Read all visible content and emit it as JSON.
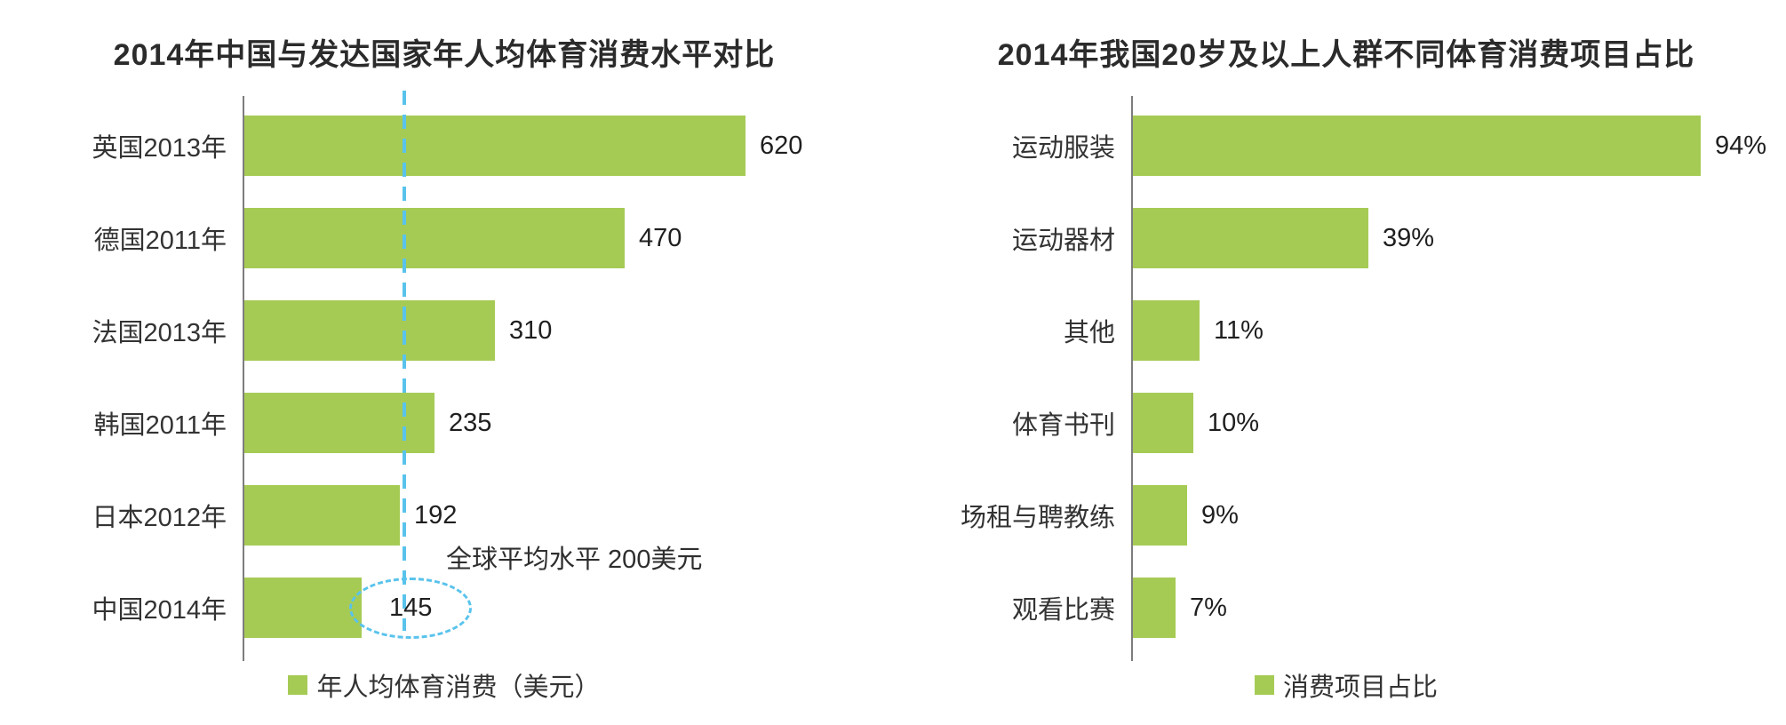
{
  "colors": {
    "bar": "#a6cb55",
    "accent": "#59c3ec",
    "axis": "#7d7d7d",
    "text": "#333333"
  },
  "chart_data": [
    {
      "type": "bar",
      "orientation": "horizontal",
      "title": "2014年中国与发达国家年人均体育消费水平对比",
      "categories": [
        "英国2013年",
        "德国2011年",
        "法国2013年",
        "韩国2011年",
        "日本2012年",
        "中国2014年"
      ],
      "values": [
        620,
        470,
        310,
        235,
        192,
        145
      ],
      "value_labels": [
        "620",
        "470",
        "310",
        "235",
        "192",
        "145"
      ],
      "xlim": [
        0,
        700
      ],
      "grid": false,
      "legend": "年人均体育消费（美元）",
      "legend_position": "bottom",
      "annotation": {
        "text": "全球平均水平 200美元",
        "line_value": 200
      },
      "highlight_index": 5,
      "bar_color": "#a6cb55"
    },
    {
      "type": "bar",
      "orientation": "horizontal",
      "title": "2014年我国20岁及以上人群不同体育消费项目占比",
      "categories": [
        "运动服装",
        "运动器材",
        "其他",
        "体育书刊",
        "场租与聘教练",
        "观看比赛"
      ],
      "values": [
        94,
        39,
        11,
        10,
        9,
        7
      ],
      "value_labels": [
        "94%",
        "39%",
        "11%",
        "10%",
        "9%",
        "7%"
      ],
      "xlim": [
        0,
        100
      ],
      "grid": false,
      "legend": "消费项目占比",
      "legend_position": "bottom",
      "bar_color": "#a6cb55"
    }
  ]
}
